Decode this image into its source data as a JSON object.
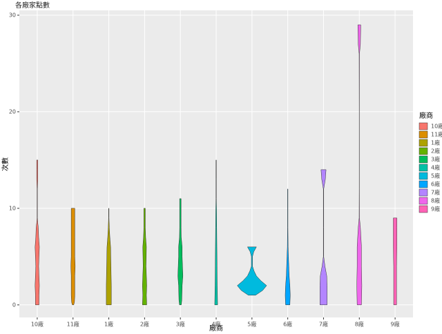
{
  "chart_data": {
    "type": "violin",
    "title": "各廠家點數",
    "x_label": "廠商",
    "y_label": "次數",
    "legend_title": "廠商",
    "legend_position": "right",
    "grid": true,
    "categories": [
      "10廠",
      "11廠",
      "1廠",
      "2廠",
      "3廠",
      "4廠",
      "5廠",
      "6廠",
      "7廠",
      "8廠",
      "9廠"
    ],
    "ylim": [
      -1.3,
      30.5
    ],
    "yticks": [
      0,
      10,
      20,
      30
    ],
    "series": [
      {
        "name": "10廠",
        "color": "#F8766D",
        "y": [
          0,
          1,
          2,
          4,
          6,
          7,
          8,
          8.5,
          9,
          12,
          13,
          14,
          15
        ],
        "width": [
          0.1,
          0.1,
          0.12,
          0.08,
          0.12,
          0.08,
          0.06,
          0.03,
          0.01,
          0.01,
          0.03,
          0.03,
          0.03
        ]
      },
      {
        "name": "11廠",
        "color": "#DB8E00",
        "y": [
          0,
          0.3,
          1,
          3,
          4,
          5,
          7,
          9,
          10
        ],
        "width": [
          0.04,
          0.08,
          0.1,
          0.1,
          0.12,
          0.1,
          0.1,
          0.1,
          0.1
        ]
      },
      {
        "name": "1廠",
        "color": "#AEA200",
        "y": [
          0,
          2,
          4,
          6,
          7,
          8,
          9,
          10
        ],
        "width": [
          0.14,
          0.14,
          0.12,
          0.1,
          0.06,
          0.03,
          0.01,
          0.01
        ]
      },
      {
        "name": "2廠",
        "color": "#64B200",
        "y": [
          0,
          1,
          2,
          4,
          6,
          7,
          8,
          9,
          10
        ],
        "width": [
          0.12,
          0.1,
          0.12,
          0.08,
          0.1,
          0.06,
          0.04,
          0.04,
          0.04
        ]
      },
      {
        "name": "3廠",
        "color": "#00BD5C",
        "y": [
          0,
          0.5,
          2,
          3,
          4,
          5,
          6,
          7,
          8,
          9,
          10,
          11
        ],
        "width": [
          0.05,
          0.08,
          0.1,
          0.14,
          0.12,
          0.1,
          0.1,
          0.05,
          0.04,
          0.04,
          0.04,
          0.04
        ]
      },
      {
        "name": "4廠",
        "color": "#00C1A7",
        "y": [
          0,
          2,
          4,
          6,
          8,
          10,
          11,
          13,
          15
        ],
        "width": [
          0.08,
          0.06,
          0.05,
          0.04,
          0.03,
          0.02,
          0.01,
          0.01,
          0.01
        ]
      },
      {
        "name": "5廠",
        "color": "#00BADE",
        "y": [
          1,
          1.5,
          2,
          2.5,
          3,
          3.5,
          4,
          5,
          5.5,
          6
        ],
        "width": [
          0.2,
          0.6,
          0.82,
          0.5,
          0.25,
          0.12,
          0.03,
          0.03,
          0.1,
          0.25
        ]
      },
      {
        "name": "6廠",
        "color": "#00A6FF",
        "y": [
          0,
          1,
          2,
          3,
          4,
          5,
          6,
          8,
          10,
          12
        ],
        "width": [
          0.12,
          0.14,
          0.12,
          0.08,
          0.06,
          0.04,
          0.02,
          0.01,
          0.01,
          0.01
        ]
      },
      {
        "name": "7廠",
        "color": "#B385FF",
        "y": [
          0,
          2,
          3,
          4,
          5,
          8,
          12,
          13,
          14
        ],
        "width": [
          0.2,
          0.2,
          0.18,
          0.08,
          0.01,
          0.01,
          0.01,
          0.1,
          0.14
        ]
      },
      {
        "name": "8廠",
        "color": "#EF67EB",
        "y": [
          0,
          2,
          4,
          6,
          8,
          9,
          12,
          20,
          26,
          27,
          29
        ],
        "width": [
          0.12,
          0.14,
          0.12,
          0.12,
          0.06,
          0.01,
          0.005,
          0.005,
          0.01,
          0.06,
          0.08
        ]
      },
      {
        "name": "9廠",
        "color": "#FF63B6",
        "y": [
          0,
          4,
          6,
          7,
          8,
          9
        ],
        "width": [
          0.08,
          0.08,
          0.1,
          0.1,
          0.1,
          0.1
        ]
      }
    ]
  }
}
